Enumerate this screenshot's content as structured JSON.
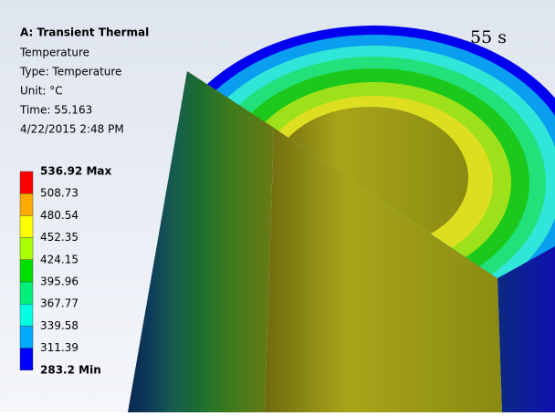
{
  "header": {
    "title": "A: Transient Thermal",
    "lines": [
      "Temperature",
      "Type: Temperature",
      "Unit: °C",
      "Time: 55.163",
      "4/22/2015 2:48 PM"
    ]
  },
  "time_label": "55 s",
  "legend": {
    "labels": [
      "536.92 Max",
      "508.73",
      "480.54",
      "452.35",
      "424.15",
      "395.96",
      "367.77",
      "339.58",
      "311.39",
      "283.2 Min"
    ],
    "colors": [
      "#ff0000",
      "#ffaa00",
      "#ffff00",
      "#aaff00",
      "#00e000",
      "#00f07a",
      "#00ffe0",
      "#00aaff",
      "#0000ff"
    ]
  }
}
